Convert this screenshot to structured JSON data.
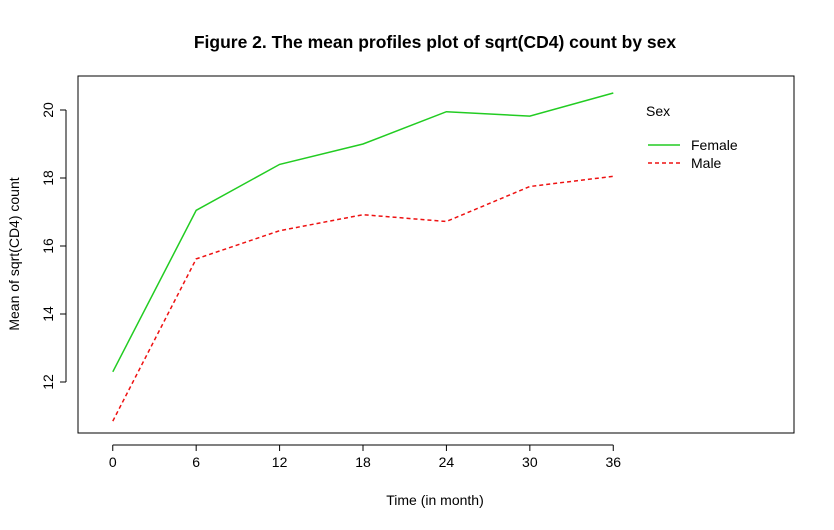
{
  "chart_data": {
    "type": "line",
    "title": "Figure 2. The mean profiles plot of sqrt(CD4) count by sex",
    "xlabel": "Time (in month)",
    "ylabel": "Mean of sqrt(CD4) count",
    "x": [
      0,
      6,
      12,
      18,
      24,
      30,
      36
    ],
    "xticks": [
      "0",
      "6",
      "12",
      "18",
      "24",
      "30",
      "36"
    ],
    "yticks": [
      "12",
      "14",
      "16",
      "18",
      "20"
    ],
    "xlim": [
      -2.5,
      49
    ],
    "ylim": [
      10.5,
      21
    ],
    "grid": false,
    "legend": {
      "title": "Sex",
      "position": "top-right"
    },
    "series": [
      {
        "name": "Female",
        "color": "#22cc22",
        "dash": "solid",
        "values": [
          12.3,
          17.05,
          18.4,
          19.0,
          19.95,
          19.82,
          20.5
        ]
      },
      {
        "name": "Male",
        "color": "#ee1111",
        "dash": "dashed",
        "values": [
          10.85,
          15.62,
          16.45,
          16.92,
          16.72,
          17.75,
          18.05
        ]
      }
    ]
  }
}
